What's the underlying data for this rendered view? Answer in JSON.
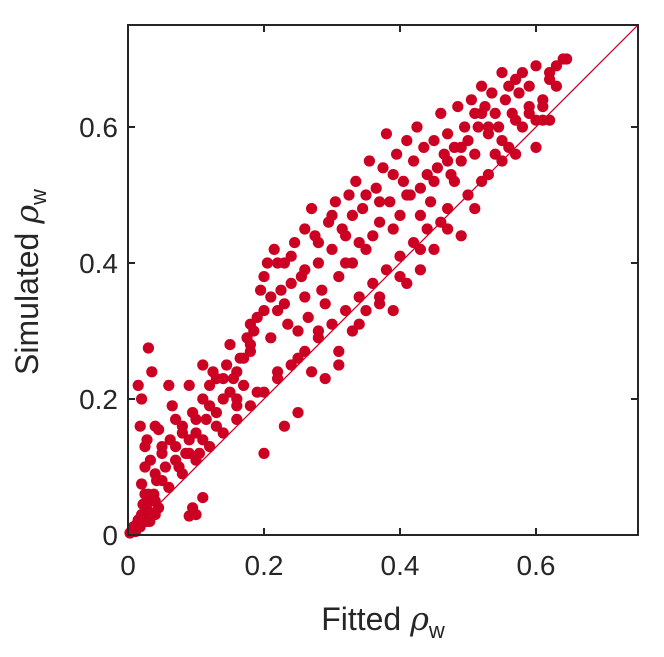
{
  "chart_data": {
    "type": "scatter",
    "xlabel": {
      "prefix": "Fitted ",
      "symbol": "ρ",
      "subscript": "w"
    },
    "ylabel": {
      "prefix": "Simulated ",
      "symbol": "ρ",
      "subscript": "w"
    },
    "xlim": [
      0,
      0.75
    ],
    "ylim": [
      0,
      0.75
    ],
    "x_ticks": [
      "0",
      "0.2",
      "0.4",
      "0.6"
    ],
    "y_ticks": [
      "0",
      "0.2",
      "0.4",
      "0.6"
    ],
    "grid": false,
    "legend": "none",
    "reference_line": {
      "type": "identity",
      "x": [
        0,
        0.75
      ],
      "y": [
        0,
        0.75
      ]
    },
    "colors": {
      "points": "#cc0022",
      "line": "#cc0022",
      "axes": "#262626"
    },
    "series": [
      {
        "points": [
          [
            0.003,
            0.003
          ],
          [
            0.006,
            0.008
          ],
          [
            0.008,
            0.012
          ],
          [
            0.011,
            0.005
          ],
          [
            0.013,
            0.016
          ],
          [
            0.015,
            0.022
          ],
          [
            0.018,
            0.012
          ],
          [
            0.02,
            0.03
          ],
          [
            0.022,
            0.045
          ],
          [
            0.025,
            0.06
          ],
          [
            0.028,
            0.02
          ],
          [
            0.03,
            0.035
          ],
          [
            0.032,
            0.02
          ],
          [
            0.035,
            0.05
          ],
          [
            0.038,
            0.06
          ],
          [
            0.04,
            0.03
          ],
          [
            0.042,
            0.08
          ],
          [
            0.045,
            0.04
          ],
          [
            0.02,
            0.075
          ],
          [
            0.025,
            0.1
          ],
          [
            0.015,
            0.22
          ],
          [
            0.02,
            0.2
          ],
          [
            0.018,
            0.16
          ],
          [
            0.03,
            0.275
          ],
          [
            0.035,
            0.24
          ],
          [
            0.025,
            0.13
          ],
          [
            0.04,
            0.09
          ],
          [
            0.05,
            0.12
          ],
          [
            0.06,
            0.22
          ],
          [
            0.065,
            0.19
          ],
          [
            0.028,
            0.14
          ],
          [
            0.033,
            0.11
          ],
          [
            0.045,
            0.155
          ],
          [
            0.055,
            0.1
          ],
          [
            0.062,
            0.14
          ],
          [
            0.07,
            0.13
          ],
          [
            0.08,
            0.16
          ],
          [
            0.085,
            0.12
          ],
          [
            0.075,
            0.1
          ],
          [
            0.09,
            0.14
          ],
          [
            0.095,
            0.18
          ],
          [
            0.1,
            0.15
          ],
          [
            0.105,
            0.12
          ],
          [
            0.11,
            0.2
          ],
          [
            0.115,
            0.17
          ],
          [
            0.12,
            0.22
          ],
          [
            0.125,
            0.24
          ],
          [
            0.13,
            0.18
          ],
          [
            0.14,
            0.2
          ],
          [
            0.145,
            0.25
          ],
          [
            0.15,
            0.21
          ],
          [
            0.155,
            0.23
          ],
          [
            0.16,
            0.19
          ],
          [
            0.165,
            0.26
          ],
          [
            0.17,
            0.22
          ],
          [
            0.175,
            0.29
          ],
          [
            0.18,
            0.27
          ],
          [
            0.185,
            0.3
          ],
          [
            0.19,
            0.32
          ],
          [
            0.195,
            0.36
          ],
          [
            0.2,
            0.38
          ],
          [
            0.205,
            0.4
          ],
          [
            0.21,
            0.35
          ],
          [
            0.215,
            0.42
          ],
          [
            0.22,
            0.33
          ],
          [
            0.225,
            0.36
          ],
          [
            0.23,
            0.4
          ],
          [
            0.235,
            0.31
          ],
          [
            0.24,
            0.37
          ],
          [
            0.245,
            0.43
          ],
          [
            0.25,
            0.3
          ],
          [
            0.255,
            0.38
          ],
          [
            0.26,
            0.35
          ],
          [
            0.265,
            0.32
          ],
          [
            0.27,
            0.48
          ],
          [
            0.275,
            0.44
          ],
          [
            0.28,
            0.4
          ],
          [
            0.285,
            0.36
          ],
          [
            0.29,
            0.34
          ],
          [
            0.295,
            0.46
          ],
          [
            0.3,
            0.42
          ],
          [
            0.305,
            0.49
          ],
          [
            0.31,
            0.38
          ],
          [
            0.315,
            0.45
          ],
          [
            0.32,
            0.4
          ],
          [
            0.325,
            0.5
          ],
          [
            0.33,
            0.47
          ],
          [
            0.335,
            0.52
          ],
          [
            0.34,
            0.43
          ],
          [
            0.345,
            0.48
          ],
          [
            0.35,
            0.5
          ],
          [
            0.355,
            0.55
          ],
          [
            0.36,
            0.44
          ],
          [
            0.365,
            0.51
          ],
          [
            0.37,
            0.46
          ],
          [
            0.375,
            0.54
          ],
          [
            0.38,
            0.59
          ],
          [
            0.385,
            0.49
          ],
          [
            0.39,
            0.53
          ],
          [
            0.395,
            0.56
          ],
          [
            0.4,
            0.47
          ],
          [
            0.405,
            0.52
          ],
          [
            0.41,
            0.58
          ],
          [
            0.415,
            0.5
          ],
          [
            0.42,
            0.55
          ],
          [
            0.425,
            0.6
          ],
          [
            0.43,
            0.51
          ],
          [
            0.435,
            0.57
          ],
          [
            0.44,
            0.53
          ],
          [
            0.445,
            0.49
          ],
          [
            0.45,
            0.58
          ],
          [
            0.455,
            0.54
          ],
          [
            0.46,
            0.62
          ],
          [
            0.465,
            0.56
          ],
          [
            0.47,
            0.59
          ],
          [
            0.475,
            0.53
          ],
          [
            0.48,
            0.57
          ],
          [
            0.485,
            0.63
          ],
          [
            0.49,
            0.55
          ],
          [
            0.495,
            0.6
          ],
          [
            0.5,
            0.58
          ],
          [
            0.505,
            0.64
          ],
          [
            0.51,
            0.62
          ],
          [
            0.515,
            0.6
          ],
          [
            0.52,
            0.66
          ],
          [
            0.525,
            0.63
          ],
          [
            0.53,
            0.59
          ],
          [
            0.535,
            0.65
          ],
          [
            0.54,
            0.62
          ],
          [
            0.545,
            0.6
          ],
          [
            0.55,
            0.68
          ],
          [
            0.555,
            0.64
          ],
          [
            0.56,
            0.66
          ],
          [
            0.565,
            0.62
          ],
          [
            0.57,
            0.67
          ],
          [
            0.575,
            0.65
          ],
          [
            0.58,
            0.68
          ],
          [
            0.59,
            0.66
          ],
          [
            0.6,
            0.69
          ],
          [
            0.61,
            0.64
          ],
          [
            0.62,
            0.67
          ],
          [
            0.63,
            0.69
          ],
          [
            0.64,
            0.7
          ],
          [
            0.645,
            0.7
          ],
          [
            0.6,
            0.61
          ],
          [
            0.58,
            0.6
          ],
          [
            0.56,
            0.57
          ],
          [
            0.54,
            0.56
          ],
          [
            0.52,
            0.52
          ],
          [
            0.5,
            0.5
          ],
          [
            0.47,
            0.48
          ],
          [
            0.44,
            0.45
          ],
          [
            0.42,
            0.43
          ],
          [
            0.4,
            0.41
          ],
          [
            0.38,
            0.39
          ],
          [
            0.36,
            0.37
          ],
          [
            0.34,
            0.35
          ],
          [
            0.32,
            0.33
          ],
          [
            0.3,
            0.31
          ],
          [
            0.28,
            0.29
          ],
          [
            0.26,
            0.27
          ],
          [
            0.24,
            0.25
          ],
          [
            0.22,
            0.23
          ],
          [
            0.2,
            0.21
          ],
          [
            0.18,
            0.19
          ],
          [
            0.16,
            0.17
          ],
          [
            0.14,
            0.15
          ],
          [
            0.12,
            0.13
          ],
          [
            0.1,
            0.11
          ],
          [
            0.08,
            0.09
          ],
          [
            0.06,
            0.07
          ],
          [
            0.04,
            0.05
          ],
          [
            0.1,
            0.03
          ],
          [
            0.095,
            0.04
          ],
          [
            0.11,
            0.055
          ],
          [
            0.09,
            0.028
          ],
          [
            0.2,
            0.12
          ],
          [
            0.23,
            0.16
          ],
          [
            0.25,
            0.18
          ],
          [
            0.27,
            0.24
          ],
          [
            0.29,
            0.23
          ],
          [
            0.31,
            0.25
          ],
          [
            0.33,
            0.3
          ],
          [
            0.35,
            0.33
          ],
          [
            0.37,
            0.34
          ],
          [
            0.39,
            0.33
          ],
          [
            0.41,
            0.37
          ],
          [
            0.43,
            0.39
          ],
          [
            0.45,
            0.42
          ],
          [
            0.47,
            0.45
          ],
          [
            0.49,
            0.44
          ],
          [
            0.51,
            0.48
          ],
          [
            0.53,
            0.53
          ],
          [
            0.55,
            0.55
          ],
          [
            0.57,
            0.56
          ],
          [
            0.59,
            0.62
          ],
          [
            0.61,
            0.63
          ],
          [
            0.62,
            0.61
          ],
          [
            0.6,
            0.57
          ],
          [
            0.48,
            0.52
          ],
          [
            0.46,
            0.46
          ],
          [
            0.43,
            0.42
          ],
          [
            0.4,
            0.38
          ],
          [
            0.37,
            0.35
          ],
          [
            0.34,
            0.31
          ],
          [
            0.31,
            0.27
          ],
          [
            0.28,
            0.3
          ],
          [
            0.25,
            0.26
          ],
          [
            0.22,
            0.24
          ],
          [
            0.19,
            0.21
          ],
          [
            0.16,
            0.2
          ],
          [
            0.13,
            0.16
          ],
          [
            0.11,
            0.14
          ],
          [
            0.09,
            0.12
          ],
          [
            0.07,
            0.11
          ],
          [
            0.05,
            0.08
          ],
          [
            0.03,
            0.06
          ],
          [
            0.26,
            0.45
          ],
          [
            0.24,
            0.41
          ],
          [
            0.22,
            0.4
          ],
          [
            0.2,
            0.33
          ],
          [
            0.18,
            0.31
          ],
          [
            0.17,
            0.26
          ],
          [
            0.15,
            0.28
          ],
          [
            0.13,
            0.23
          ],
          [
            0.12,
            0.19
          ],
          [
            0.1,
            0.17
          ],
          [
            0.08,
            0.15
          ],
          [
            0.07,
            0.17
          ],
          [
            0.05,
            0.13
          ],
          [
            0.04,
            0.16
          ],
          [
            0.09,
            0.22
          ],
          [
            0.11,
            0.25
          ],
          [
            0.14,
            0.23
          ],
          [
            0.16,
            0.24
          ],
          [
            0.18,
            0.28
          ],
          [
            0.21,
            0.29
          ],
          [
            0.23,
            0.34
          ],
          [
            0.26,
            0.39
          ],
          [
            0.28,
            0.43
          ],
          [
            0.3,
            0.47
          ],
          [
            0.32,
            0.44
          ],
          [
            0.33,
            0.4
          ],
          [
            0.35,
            0.42
          ],
          [
            0.37,
            0.49
          ],
          [
            0.39,
            0.45
          ],
          [
            0.41,
            0.5
          ],
          [
            0.43,
            0.47
          ],
          [
            0.45,
            0.52
          ],
          [
            0.47,
            0.55
          ],
          [
            0.49,
            0.57
          ],
          [
            0.51,
            0.56
          ],
          [
            0.53,
            0.6
          ],
          [
            0.55,
            0.58
          ],
          [
            0.57,
            0.61
          ],
          [
            0.59,
            0.63
          ],
          [
            0.61,
            0.61
          ],
          [
            0.63,
            0.66
          ],
          [
            0.62,
            0.68
          ],
          [
            0.52,
            0.62
          ]
        ]
      }
    ]
  }
}
